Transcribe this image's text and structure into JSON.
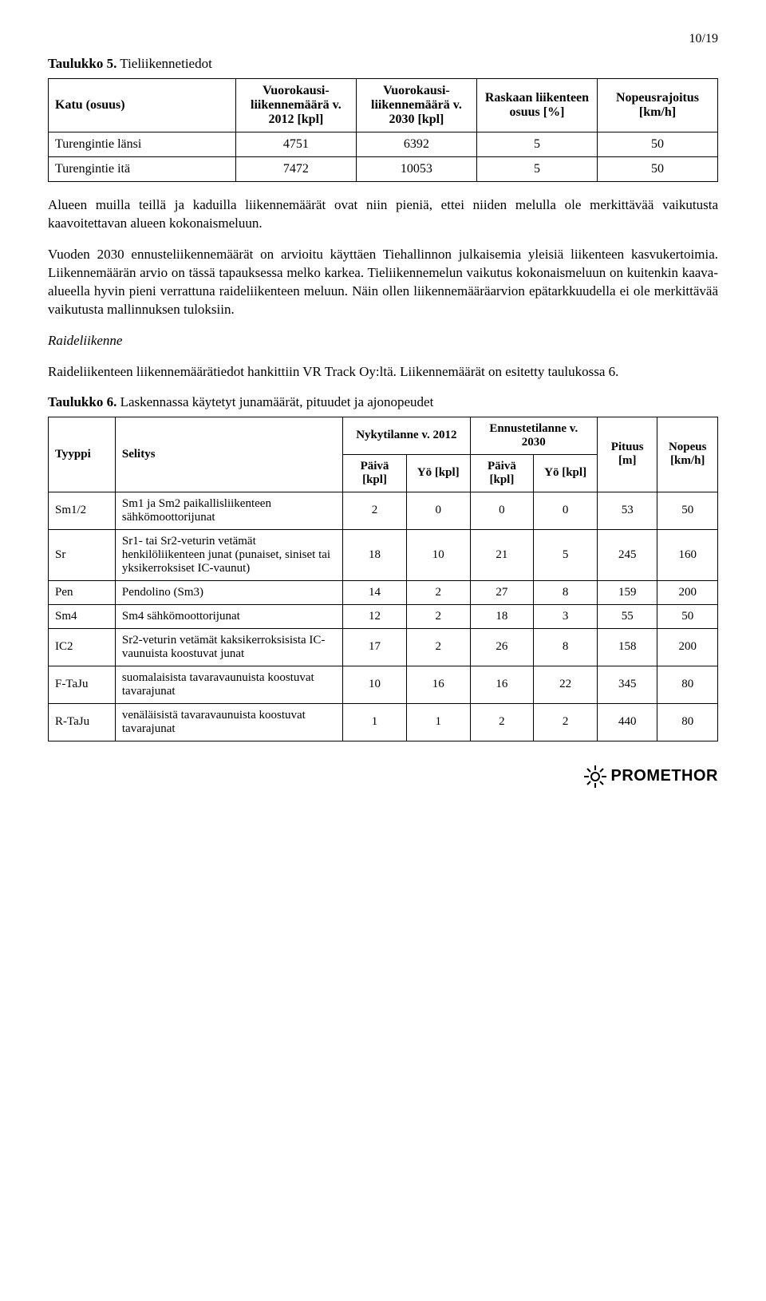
{
  "page_number": "10/19",
  "table5": {
    "caption_label": "Taulukko 5.",
    "caption_text": "Tieliikennetiedot",
    "headers": [
      "Katu (osuus)",
      "Vuorokausi-\nliikennemäärä\nv. 2012 [kpl]",
      "Vuorokausi-\nliikennemäärä\nv. 2030 [kpl]",
      "Raskaan\nliikenteen osuus\n[%]",
      "Nopeusrajoitus\n[km/h]"
    ],
    "rows": [
      [
        "Turengintie länsi",
        "4751",
        "6392",
        "5",
        "50"
      ],
      [
        "Turengintie itä",
        "7472",
        "10053",
        "5",
        "50"
      ]
    ]
  },
  "para1": "Alueen muilla teillä ja kaduilla liikennemäärät ovat niin pieniä, ettei niiden melulla ole merkittävää vaikutusta kaavoitettavan alueen kokonaismeluun.",
  "para2": "Vuoden 2030 ennusteliikennemäärät on arvioitu käyttäen Tiehallinnon julkaisemia yleisiä liikenteen kasvukertoimia. Liikennemäärän arvio on tässä tapauksessa melko karkea. Tieliikennemelun vaikutus kokonaismeluun on kuitenkin kaava-alueella hyvin pieni verrattuna raideliikenteen meluun. Näin ollen liikennemääräarvion epätarkkuudella ei ole merkittävää vaikutusta mallinnuksen tuloksiin.",
  "subheading": "Raideliikenne",
  "para3": "Raideliikenteen liikennemäärätiedot hankittiin VR Track Oy:ltä. Liikennemäärät on esitetty taulukossa 6.",
  "table6": {
    "caption_label": "Taulukko 6.",
    "caption_text": "Laskennassa käytetyt junamäärät, pituudet ja ajonopeudet",
    "super_headers": {
      "nyky": "Nykytilanne v.\n2012",
      "ennuste": "Ennustetilanne\nv. 2030"
    },
    "headers": {
      "tyyppi": "Tyyppi",
      "selitys": "Selitys",
      "paiva": "Päivä\n[kpl]",
      "yo": "Yö\n[kpl]",
      "paiva2": "Päivä\n[kpl]",
      "yo2": "Yö\n[kpl]",
      "pituus": "Pituus\n[m]",
      "nopeus": "Nopeus\n[km/h]"
    },
    "rows": [
      [
        "Sm1/2",
        "Sm1 ja Sm2 paikallisliikenteen sähkömoottorijunat",
        "2",
        "0",
        "0",
        "0",
        "53",
        "50"
      ],
      [
        "Sr",
        "Sr1- tai Sr2-veturin vetämät henkilöliikenteen junat (punaiset, siniset tai yksikerroksiset IC-vaunut)",
        "18",
        "10",
        "21",
        "5",
        "245",
        "160"
      ],
      [
        "Pen",
        "Pendolino (Sm3)",
        "14",
        "2",
        "27",
        "8",
        "159",
        "200"
      ],
      [
        "Sm4",
        "Sm4 sähkömoottorijunat",
        "12",
        "2",
        "18",
        "3",
        "55",
        "50"
      ],
      [
        "IC2",
        "Sr2-veturin vetämät kaksikerroksisista IC-vaunuista koostuvat junat",
        "17",
        "2",
        "26",
        "8",
        "158",
        "200"
      ],
      [
        "F-TaJu",
        "suomalaisista tavaravaunuista koostuvat tavarajunat",
        "10",
        "16",
        "16",
        "22",
        "345",
        "80"
      ],
      [
        "R-TaJu",
        "venäläisistä tavaravaunuista koostuvat tavarajunat",
        "1",
        "1",
        "2",
        "2",
        "440",
        "80"
      ]
    ]
  },
  "logo_text": "PROMETHOR"
}
